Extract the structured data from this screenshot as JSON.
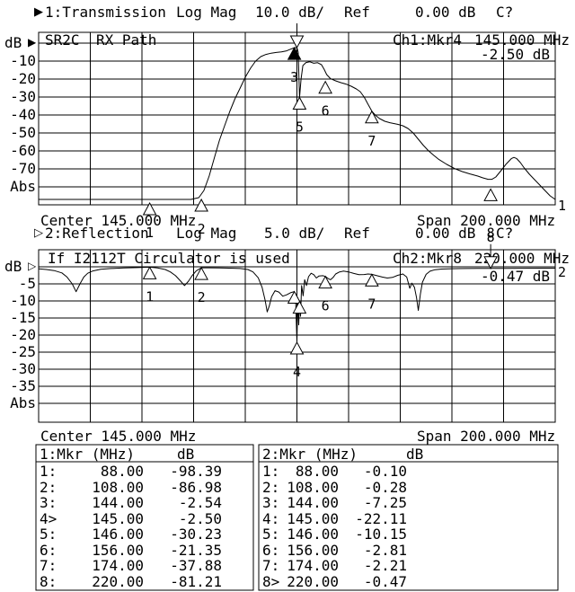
{
  "colors": {
    "fg": "#000000",
    "bg": "#ffffff"
  },
  "ch1": {
    "marker_glyph": "▶",
    "title": "1:Transmission",
    "format": "Log Mag",
    "scale": "10.0 dB/",
    "ref_label": "Ref",
    "ref_value": "0.00 dB",
    "cal_status": "C?",
    "label_left": "SR2C",
    "label_left2": "RX Path",
    "marker_readout_label": "Ch1:Mkr4",
    "marker_readout_freq": "145.000 MHz",
    "marker_readout_value": "-2.50 dB",
    "axis_unit": "dB",
    "ref_arrow": "▶",
    "y_ticks": [
      "-10",
      "-20",
      "-30",
      "-40",
      "-50",
      "-60",
      "-70"
    ],
    "y_bottom_label": "Abs",
    "center": "Center 145.000 MHz",
    "span": "Span 200.000 MHz",
    "trace_number": "1"
  },
  "ch2": {
    "marker_glyph": "▷",
    "title": "2:Reflection",
    "format": "Log Mag",
    "scale": "5.0 dB/",
    "ref_label": "Ref",
    "ref_value": "0.00 dB",
    "cal_status": "C?",
    "note": "If I2112T Circulator is used",
    "marker_readout_label": "Ch2:Mkr8",
    "marker_readout_freq": "220.000 MHz",
    "marker_readout_value": "-0.47 dB",
    "axis_unit": "dB",
    "ref_arrow": "▷",
    "y_ticks": [
      "-5",
      "-10",
      "-15",
      "-20",
      "-25",
      "-30",
      "-35"
    ],
    "y_bottom_label": "Abs",
    "center": "Center 145.000 MHz",
    "span": "Span 200.000 MHz",
    "trace_number": "2"
  },
  "marker_table": {
    "panels": [
      {
        "header": "1:Mkr (MHz)",
        "header_unit": "dB",
        "rows": [
          [
            "1:",
            "88.00",
            "-98.39"
          ],
          [
            "2:",
            "108.00",
            "-86.98"
          ],
          [
            "3:",
            "144.00",
            "-2.54"
          ],
          [
            "4>",
            "145.00",
            "-2.50"
          ],
          [
            "5:",
            "146.00",
            "-30.23"
          ],
          [
            "6:",
            "156.00",
            "-21.35"
          ],
          [
            "7:",
            "174.00",
            "-37.88"
          ],
          [
            "8:",
            "220.00",
            "-81.21"
          ]
        ]
      },
      {
        "header": "2:Mkr (MHz)",
        "header_unit": "dB",
        "rows": [
          [
            "1:",
            "88.00",
            "-0.10"
          ],
          [
            "2:",
            "108.00",
            "-0.28"
          ],
          [
            "3:",
            "144.00",
            "-7.25"
          ],
          [
            "4:",
            "145.00",
            "-22.11"
          ],
          [
            "5:",
            "146.00",
            "-10.15"
          ],
          [
            "6:",
            "156.00",
            "-2.81"
          ],
          [
            "7:",
            "174.00",
            "-2.21"
          ],
          [
            "8>",
            "220.00",
            "-0.47"
          ]
        ]
      }
    ]
  },
  "chart_data": [
    {
      "type": "line",
      "name": "Transmission",
      "channel": 1,
      "title": "1:Transmission",
      "format": "Log Mag",
      "scale_db_per_div": 10.0,
      "ref_db": 0.0,
      "center_mhz": 145.0,
      "span_mhz": 200.0,
      "x_range_mhz": [
        45,
        245
      ],
      "y_top_db": 0,
      "y_bottom_db": -80,
      "grid": true,
      "trace_mhz_db": [
        [
          45,
          -87
        ],
        [
          100,
          -87
        ],
        [
          104,
          -87
        ],
        [
          107,
          -86
        ],
        [
          109,
          -82
        ],
        [
          111,
          -74
        ],
        [
          113,
          -64
        ],
        [
          115,
          -54
        ],
        [
          117,
          -46
        ],
        [
          119,
          -38
        ],
        [
          121,
          -31
        ],
        [
          123,
          -25
        ],
        [
          125,
          -19
        ],
        [
          127,
          -14
        ],
        [
          129,
          -10
        ],
        [
          131,
          -7.5
        ],
        [
          133,
          -6.3
        ],
        [
          135,
          -5.6
        ],
        [
          137,
          -5.2
        ],
        [
          139,
          -4.9
        ],
        [
          141,
          -4.3
        ],
        [
          142.5,
          -3.4
        ],
        [
          144,
          -2.54
        ],
        [
          145,
          -2.5
        ],
        [
          145.5,
          -5
        ],
        [
          146,
          -30.23
        ],
        [
          146.6,
          -20
        ],
        [
          147.3,
          -12.5
        ],
        [
          148.5,
          -10.8
        ],
        [
          150,
          -10.4
        ],
        [
          151.5,
          -11.2
        ],
        [
          153,
          -10.9
        ],
        [
          154.5,
          -12
        ],
        [
          155.5,
          -14.5
        ],
        [
          156.5,
          -17.5
        ],
        [
          158,
          -19.8
        ],
        [
          160,
          -21
        ],
        [
          162,
          -22
        ],
        [
          164,
          -22.8
        ],
        [
          166,
          -24
        ],
        [
          168,
          -25.5
        ],
        [
          169.5,
          -27
        ],
        [
          171,
          -30
        ],
        [
          172.5,
          -34
        ],
        [
          174,
          -37.9
        ],
        [
          175.5,
          -40.3
        ],
        [
          177,
          -42
        ],
        [
          179,
          -43.5
        ],
        [
          181,
          -44.3
        ],
        [
          184,
          -45.2
        ],
        [
          186,
          -46
        ],
        [
          188,
          -47.5
        ],
        [
          190,
          -50
        ],
        [
          192,
          -53.5
        ],
        [
          194,
          -57
        ],
        [
          196,
          -60
        ],
        [
          198,
          -62.5
        ],
        [
          200,
          -64.8
        ],
        [
          203,
          -67.5
        ],
        [
          206,
          -69.8
        ],
        [
          209,
          -71.5
        ],
        [
          212,
          -72.8
        ],
        [
          215,
          -74
        ],
        [
          217,
          -75
        ],
        [
          219,
          -75.8
        ],
        [
          220.5,
          -75.8
        ],
        [
          222,
          -74.5
        ],
        [
          224,
          -71
        ],
        [
          226,
          -67.3
        ],
        [
          228,
          -64.3
        ],
        [
          229,
          -63.6
        ],
        [
          230,
          -64.2
        ],
        [
          231.5,
          -66.5
        ],
        [
          233,
          -69.5
        ],
        [
          235,
          -73
        ],
        [
          237,
          -76
        ],
        [
          239,
          -79
        ],
        [
          241,
          -82
        ],
        [
          243,
          -85
        ],
        [
          245,
          -87
        ]
      ],
      "markers": [
        {
          "n": "1",
          "mhz": 88,
          "db": -98.39,
          "style": "normal",
          "label": "below"
        },
        {
          "n": "2",
          "mhz": 108,
          "db": -86.98,
          "style": "normal",
          "label": "below"
        },
        {
          "n": "3",
          "mhz": 144,
          "db": -2.54,
          "style": "filled",
          "label": "below"
        },
        {
          "n": "4",
          "mhz": 145,
          "db": -2.5,
          "style": "active",
          "label": "none"
        },
        {
          "n": "5",
          "mhz": 146,
          "db": -30.23,
          "style": "normal",
          "label": "below"
        },
        {
          "n": "6",
          "mhz": 156,
          "db": -21.35,
          "style": "normal",
          "label": "below"
        },
        {
          "n": "7",
          "mhz": 174,
          "db": -37.88,
          "style": "normal",
          "label": "below"
        },
        {
          "n": "8",
          "mhz": 220,
          "db": -81.21,
          "style": "normal",
          "label": "below",
          "label_dy": 30
        }
      ]
    },
    {
      "type": "line",
      "name": "Reflection",
      "channel": 2,
      "title": "2:Reflection",
      "format": "Log Mag",
      "scale_db_per_div": 5.0,
      "ref_db": 0.0,
      "center_mhz": 145.0,
      "span_mhz": 200.0,
      "x_range_mhz": [
        45,
        245
      ],
      "y_top_db": 0,
      "y_bottom_db": -40,
      "grid": true,
      "trace_mhz_db": [
        [
          45,
          -0.6
        ],
        [
          48,
          -0.8
        ],
        [
          51,
          -1.1
        ],
        [
          54,
          -1.8
        ],
        [
          56,
          -3
        ],
        [
          58,
          -5
        ],
        [
          59.5,
          -7.3
        ],
        [
          61,
          -5
        ],
        [
          62.5,
          -3
        ],
        [
          64,
          -1.9
        ],
        [
          66,
          -1.2
        ],
        [
          69,
          -0.7
        ],
        [
          73,
          -0.5
        ],
        [
          78,
          -0.35
        ],
        [
          83,
          -0.25
        ],
        [
          88,
          -0.1
        ],
        [
          91,
          -0.35
        ],
        [
          94,
          -0.8
        ],
        [
          96,
          -1.5
        ],
        [
          98,
          -2.6
        ],
        [
          100,
          -4.2
        ],
        [
          101.5,
          -5.5
        ],
        [
          103,
          -4.2
        ],
        [
          104.5,
          -2.5
        ],
        [
          106,
          -1.2
        ],
        [
          108,
          -0.28
        ],
        [
          111,
          -0.3
        ],
        [
          115,
          -0.35
        ],
        [
          119,
          -0.4
        ],
        [
          123,
          -0.5
        ],
        [
          126,
          -0.8
        ],
        [
          128,
          -1.5
        ],
        [
          130,
          -3.2
        ],
        [
          131.5,
          -6
        ],
        [
          132.7,
          -9.8
        ],
        [
          133.5,
          -13.2
        ],
        [
          134.3,
          -11.5
        ],
        [
          135.2,
          -8.8
        ],
        [
          136.5,
          -7
        ],
        [
          138,
          -7.4
        ],
        [
          139.5,
          -8.6
        ],
        [
          141,
          -8.2
        ],
        [
          142.5,
          -7.6
        ],
        [
          144,
          -7.25
        ],
        [
          144.5,
          -10
        ],
        [
          145,
          -22.11
        ],
        [
          145.35,
          -9
        ],
        [
          145.7,
          -17
        ],
        [
          146,
          -10.15
        ],
        [
          146.4,
          -14.5
        ],
        [
          146.8,
          -5.5
        ],
        [
          147.4,
          -8.5
        ],
        [
          148,
          -3.8
        ],
        [
          148.7,
          -5.5
        ],
        [
          149.5,
          -2.9
        ],
        [
          150.5,
          -1.9
        ],
        [
          151.5,
          -2.3
        ],
        [
          152.5,
          -3.3
        ],
        [
          153.5,
          -2.7
        ],
        [
          155,
          -2.6
        ],
        [
          156,
          -2.81
        ],
        [
          157,
          -3.4
        ],
        [
          158,
          -3.8
        ],
        [
          159,
          -3.1
        ],
        [
          160,
          -2.1
        ],
        [
          161.5,
          -1.5
        ],
        [
          163,
          -1.25
        ],
        [
          165,
          -1.5
        ],
        [
          167,
          -1.95
        ],
        [
          169,
          -2.3
        ],
        [
          171,
          -2.25
        ],
        [
          172.5,
          -2.1
        ],
        [
          174,
          -2.21
        ],
        [
          176,
          -2.6
        ],
        [
          178,
          -3
        ],
        [
          180,
          -3.3
        ],
        [
          182,
          -3.1
        ],
        [
          184,
          -2.5
        ],
        [
          186,
          -2.1
        ],
        [
          187.5,
          -3
        ],
        [
          188.7,
          -6.3
        ],
        [
          189.5,
          -4.8
        ],
        [
          190.5,
          -6
        ],
        [
          191.3,
          -9
        ],
        [
          192,
          -12.8
        ],
        [
          192.8,
          -8
        ],
        [
          193.6,
          -4.5
        ],
        [
          195,
          -2.2
        ],
        [
          196.5,
          -1.3
        ],
        [
          198.5,
          -0.85
        ],
        [
          201,
          -0.65
        ],
        [
          205,
          -0.55
        ],
        [
          210,
          -0.5
        ],
        [
          215,
          -0.48
        ],
        [
          220,
          -0.47
        ],
        [
          226,
          -0.45
        ],
        [
          233,
          -0.42
        ],
        [
          240,
          -0.4
        ],
        [
          245,
          -0.4
        ]
      ],
      "markers": [
        {
          "n": "1",
          "mhz": 88,
          "db": -0.1,
          "style": "normal",
          "label": "below"
        },
        {
          "n": "2",
          "mhz": 108,
          "db": -0.28,
          "style": "normal",
          "label": "below"
        },
        {
          "n": "3",
          "mhz": 144,
          "db": -7.25,
          "style": "normal",
          "label": "none"
        },
        {
          "n": "4",
          "mhz": 145,
          "db": -22.11,
          "style": "normal",
          "label": "below"
        },
        {
          "n": "5",
          "mhz": 146,
          "db": -10.15,
          "style": "normal",
          "label": "none"
        },
        {
          "n": "6",
          "mhz": 156,
          "db": -2.81,
          "style": "normal",
          "label": "below"
        },
        {
          "n": "7",
          "mhz": 174,
          "db": -2.21,
          "style": "normal",
          "label": "below"
        },
        {
          "n": "8",
          "mhz": 220,
          "db": -0.47,
          "style": "active",
          "label": "above"
        }
      ]
    }
  ]
}
